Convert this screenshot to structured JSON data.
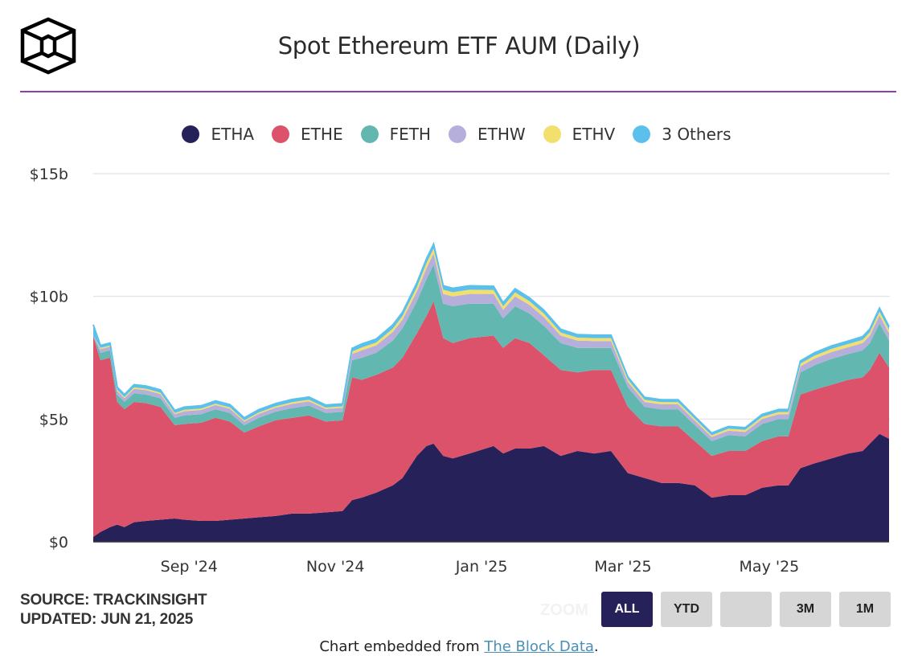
{
  "header": {
    "title": "Spot Ethereum ETF AUM (Daily)",
    "logo_icon": "the-block-cube-logo"
  },
  "colors": {
    "accent_rule": "#8b3fb0",
    "ETHA": "#27215a",
    "ETHE": "#dc526a",
    "FETH": "#62b8b0",
    "ETHW": "#b7afdb",
    "ETHV": "#f3df6c",
    "Others": "#5bc0eb",
    "active_button": "#27215a",
    "inactive_button": "#d6d6d6",
    "link": "#4a8fb5"
  },
  "legend": [
    {
      "key": "ETHA",
      "label": "ETHA",
      "color": "#27215a"
    },
    {
      "key": "ETHE",
      "label": "ETHE",
      "color": "#dc526a"
    },
    {
      "key": "FETH",
      "label": "FETH",
      "color": "#62b8b0"
    },
    {
      "key": "ETHW",
      "label": "ETHW",
      "color": "#b7afdb"
    },
    {
      "key": "ETHV",
      "label": "ETHV",
      "color": "#f3df6c"
    },
    {
      "key": "Others",
      "label": "3 Others",
      "color": "#5bc0eb"
    }
  ],
  "chart_data": {
    "type": "area",
    "stacked": true,
    "title": "Spot Ethereum ETF AUM (Daily)",
    "xlabel": "",
    "ylabel": "",
    "ylim": [
      0,
      15
    ],
    "y_unit": "$ billions",
    "yticks": [
      {
        "value": 0,
        "label": "$0"
      },
      {
        "value": 5,
        "label": "$5b"
      },
      {
        "value": 10,
        "label": "$10b"
      },
      {
        "value": 15,
        "label": "$15b"
      }
    ],
    "xlim": [
      "2024-07-23",
      "2025-06-20"
    ],
    "xticks": [
      {
        "date": "2024-09-01",
        "label": "Sep '24"
      },
      {
        "date": "2024-11-01",
        "label": "Nov '24"
      },
      {
        "date": "2025-01-01",
        "label": "Jan '25"
      },
      {
        "date": "2025-03-01",
        "label": "Mar '25"
      },
      {
        "date": "2025-05-01",
        "label": "May '25"
      }
    ],
    "grid": true,
    "legend_position": "top-center",
    "x": [
      "2024-07-23",
      "2024-07-26",
      "2024-07-30",
      "2024-08-02",
      "2024-08-05",
      "2024-08-09",
      "2024-08-14",
      "2024-08-20",
      "2024-08-26",
      "2024-08-30",
      "2024-09-06",
      "2024-09-12",
      "2024-09-18",
      "2024-09-24",
      "2024-09-30",
      "2024-10-07",
      "2024-10-14",
      "2024-10-21",
      "2024-10-28",
      "2024-11-04",
      "2024-11-08",
      "2024-11-12",
      "2024-11-18",
      "2024-11-25",
      "2024-11-29",
      "2024-12-05",
      "2024-12-09",
      "2024-12-12",
      "2024-12-16",
      "2024-12-20",
      "2024-12-27",
      "2025-01-06",
      "2025-01-10",
      "2025-01-15",
      "2025-01-21",
      "2025-01-27",
      "2025-02-03",
      "2025-02-10",
      "2025-02-17",
      "2025-02-24",
      "2025-03-03",
      "2025-03-10",
      "2025-03-17",
      "2025-03-24",
      "2025-03-31",
      "2025-04-07",
      "2025-04-14",
      "2025-04-21",
      "2025-04-28",
      "2025-05-05",
      "2025-05-09",
      "2025-05-14",
      "2025-05-20",
      "2025-05-27",
      "2025-06-03",
      "2025-06-09",
      "2025-06-12",
      "2025-06-16",
      "2025-06-20"
    ],
    "series": [
      {
        "name": "ETHA",
        "values": [
          0.2,
          0.4,
          0.6,
          0.7,
          0.6,
          0.8,
          0.85,
          0.9,
          0.95,
          0.9,
          0.85,
          0.85,
          0.9,
          0.95,
          1.0,
          1.05,
          1.15,
          1.15,
          1.2,
          1.25,
          1.7,
          1.8,
          2.0,
          2.3,
          2.6,
          3.5,
          3.9,
          4.0,
          3.5,
          3.4,
          3.6,
          3.9,
          3.6,
          3.8,
          3.8,
          3.9,
          3.5,
          3.7,
          3.6,
          3.7,
          2.8,
          2.6,
          2.4,
          2.4,
          2.3,
          1.8,
          1.9,
          1.9,
          2.2,
          2.3,
          2.3,
          3.0,
          3.2,
          3.4,
          3.6,
          3.7,
          4.0,
          4.4,
          4.2
        ]
      },
      {
        "name": "ETHE",
        "values": [
          8.2,
          7.0,
          6.9,
          5.0,
          4.8,
          4.9,
          4.8,
          4.6,
          3.8,
          3.9,
          4.0,
          4.2,
          4.0,
          3.5,
          3.7,
          3.9,
          3.9,
          4.0,
          3.7,
          3.7,
          5.0,
          4.8,
          4.8,
          4.8,
          4.9,
          5.0,
          5.3,
          5.8,
          4.8,
          4.7,
          4.7,
          4.5,
          4.3,
          4.5,
          4.3,
          3.7,
          3.5,
          3.2,
          3.4,
          3.3,
          2.7,
          2.2,
          2.3,
          2.3,
          1.8,
          1.7,
          1.8,
          1.8,
          1.9,
          2.0,
          2.0,
          3.0,
          3.0,
          3.0,
          3.0,
          3.0,
          3.0,
          3.3,
          2.9
        ]
      },
      {
        "name": "FETH",
        "values": [
          0.0,
          0.3,
          0.3,
          0.3,
          0.3,
          0.35,
          0.35,
          0.35,
          0.3,
          0.35,
          0.35,
          0.35,
          0.35,
          0.3,
          0.35,
          0.35,
          0.4,
          0.4,
          0.35,
          0.35,
          0.7,
          0.9,
          0.9,
          1.1,
          1.2,
          1.3,
          1.5,
          1.5,
          1.4,
          1.5,
          1.4,
          1.3,
          1.2,
          1.3,
          1.2,
          1.2,
          1.1,
          1.0,
          0.9,
          0.9,
          0.8,
          0.7,
          0.7,
          0.7,
          0.65,
          0.6,
          0.65,
          0.6,
          0.7,
          0.7,
          0.7,
          0.9,
          1.0,
          1.05,
          1.05,
          1.1,
          1.1,
          1.2,
          1.1
        ]
      },
      {
        "name": "ETHW",
        "values": [
          0.0,
          0.15,
          0.15,
          0.15,
          0.15,
          0.18,
          0.18,
          0.17,
          0.15,
          0.17,
          0.17,
          0.17,
          0.17,
          0.15,
          0.16,
          0.16,
          0.17,
          0.17,
          0.16,
          0.16,
          0.25,
          0.3,
          0.3,
          0.35,
          0.35,
          0.4,
          0.45,
          0.45,
          0.4,
          0.4,
          0.4,
          0.4,
          0.35,
          0.4,
          0.35,
          0.35,
          0.3,
          0.3,
          0.28,
          0.28,
          0.22,
          0.2,
          0.2,
          0.2,
          0.18,
          0.17,
          0.18,
          0.18,
          0.2,
          0.2,
          0.2,
          0.25,
          0.27,
          0.28,
          0.28,
          0.3,
          0.3,
          0.33,
          0.3
        ]
      },
      {
        "name": "ETHV",
        "values": [
          0.0,
          0.05,
          0.05,
          0.05,
          0.05,
          0.06,
          0.06,
          0.06,
          0.05,
          0.06,
          0.06,
          0.06,
          0.06,
          0.05,
          0.06,
          0.06,
          0.07,
          0.07,
          0.06,
          0.06,
          0.1,
          0.12,
          0.12,
          0.14,
          0.15,
          0.18,
          0.2,
          0.2,
          0.17,
          0.17,
          0.17,
          0.16,
          0.15,
          0.16,
          0.15,
          0.15,
          0.13,
          0.12,
          0.12,
          0.12,
          0.1,
          0.09,
          0.09,
          0.09,
          0.08,
          0.07,
          0.08,
          0.08,
          0.09,
          0.09,
          0.09,
          0.11,
          0.12,
          0.13,
          0.13,
          0.13,
          0.14,
          0.15,
          0.14
        ]
      },
      {
        "name": "3 Others",
        "values": [
          0.45,
          0.1,
          0.1,
          0.1,
          0.1,
          0.11,
          0.11,
          0.11,
          0.1,
          0.11,
          0.11,
          0.11,
          0.11,
          0.1,
          0.11,
          0.11,
          0.11,
          0.11,
          0.1,
          0.1,
          0.13,
          0.14,
          0.14,
          0.15,
          0.15,
          0.17,
          0.18,
          0.18,
          0.16,
          0.16,
          0.16,
          0.15,
          0.14,
          0.15,
          0.14,
          0.14,
          0.13,
          0.12,
          0.12,
          0.12,
          0.1,
          0.1,
          0.1,
          0.1,
          0.09,
          0.09,
          0.09,
          0.09,
          0.1,
          0.1,
          0.1,
          0.11,
          0.12,
          0.12,
          0.12,
          0.13,
          0.13,
          0.14,
          0.13
        ]
      }
    ]
  },
  "source": {
    "line1": "SOURCE: TRACKINSIGHT",
    "line2": "UPDATED: JUN 21, 2025"
  },
  "range_selector": {
    "zoom_label": "ZOOM",
    "buttons": [
      {
        "label": "ALL",
        "active": true
      },
      {
        "label": "YTD",
        "active": false
      },
      {
        "label": "",
        "active": false
      },
      {
        "label": "3M",
        "active": false
      },
      {
        "label": "1M",
        "active": false
      }
    ]
  },
  "footer": {
    "prefix": "Chart embedded from ",
    "link_text": "The Block Data",
    "suffix": "."
  }
}
